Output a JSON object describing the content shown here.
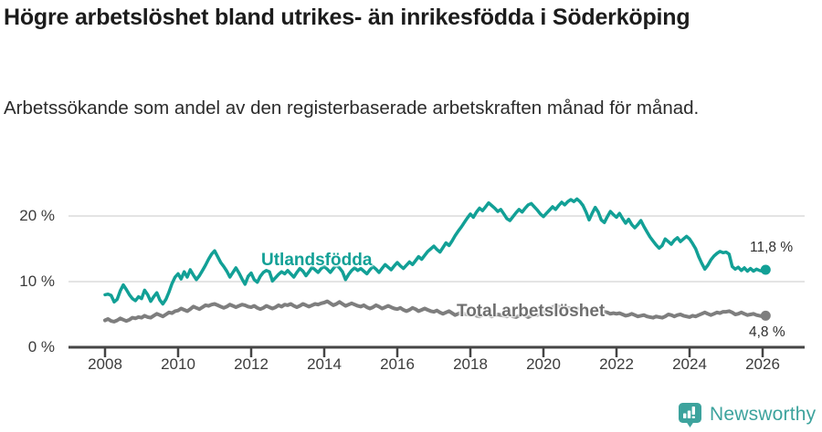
{
  "header": {
    "title": "Högre arbetslöshet bland utrikes- än inrikesfödda i Söderköping",
    "subtitle": "Arbetssökande som andel av den registerbaserade arbetskraften månad för månad."
  },
  "colors": {
    "accent_teal": "#12a096",
    "line_gray": "#7e7e7e",
    "gridline": "#dcdcdc",
    "axis": "#454545",
    "brand_teal": "#3da39d"
  },
  "chart_data": {
    "type": "line",
    "title": "Högre arbetslöshet bland utrikes- än inrikesfödda i Söderköping",
    "xlabel": "",
    "ylabel": "",
    "grid": "horizontal-only",
    "legend_position": "inline-labels",
    "x_start_year": 2008,
    "points_per_year": 12,
    "x_range": [
      2008.0,
      2026.17
    ],
    "ylim": [
      0,
      24
    ],
    "x_ticks": [
      2008,
      2010,
      2012,
      2014,
      2016,
      2018,
      2020,
      2022,
      2024,
      2026
    ],
    "y_ticks": [
      {
        "value": 0,
        "label": "0 %"
      },
      {
        "value": 10,
        "label": "10 %"
      },
      {
        "value": 20,
        "label": "20 %"
      }
    ],
    "series": [
      {
        "name": "Utlandsfödda",
        "color": "#12a096",
        "end_label": "11,8 %",
        "end_value": 11.8,
        "values": [
          8.0,
          8.1,
          7.9,
          6.9,
          7.3,
          8.6,
          9.5,
          8.8,
          8.0,
          7.4,
          7.1,
          7.7,
          7.4,
          8.7,
          8.0,
          7.0,
          7.7,
          8.3,
          7.2,
          6.6,
          7.3,
          8.4,
          9.7,
          10.7,
          11.2,
          10.4,
          11.5,
          10.7,
          11.8,
          11.0,
          10.3,
          10.9,
          11.7,
          12.5,
          13.4,
          14.2,
          14.7,
          13.8,
          12.9,
          12.3,
          11.6,
          10.7,
          11.4,
          12.1,
          11.3,
          10.4,
          9.6,
          10.8,
          11.3,
          10.3,
          9.9,
          10.8,
          11.4,
          11.7,
          11.5,
          10.1,
          10.6,
          11.1,
          11.5,
          11.2,
          11.7,
          11.2,
          10.7,
          11.4,
          12.0,
          11.6,
          10.9,
          11.5,
          12.2,
          11.8,
          11.4,
          12.0,
          12.3,
          11.9,
          11.4,
          12.0,
          12.5,
          12.1,
          11.5,
          10.3,
          11.1,
          11.7,
          12.1,
          11.7,
          12.0,
          11.6,
          11.2,
          11.8,
          12.3,
          11.9,
          11.4,
          12.0,
          12.6,
          12.2,
          11.8,
          12.4,
          12.9,
          12.4,
          12.0,
          12.5,
          13.0,
          12.6,
          13.2,
          13.8,
          13.4,
          14.0,
          14.6,
          15.0,
          15.4,
          14.9,
          14.5,
          15.2,
          15.9,
          15.5,
          16.2,
          17.0,
          17.7,
          18.3,
          19.0,
          19.7,
          20.3,
          19.8,
          20.6,
          21.2,
          20.8,
          21.4,
          22.0,
          21.6,
          21.2,
          20.7,
          21.0,
          20.3,
          19.6,
          19.3,
          19.9,
          20.5,
          21.0,
          20.6,
          21.2,
          21.7,
          21.9,
          21.4,
          20.9,
          20.3,
          19.9,
          20.4,
          20.9,
          21.4,
          21.0,
          21.6,
          22.1,
          21.7,
          22.2,
          22.5,
          22.2,
          22.6,
          22.2,
          21.6,
          20.6,
          19.4,
          20.4,
          21.3,
          20.6,
          19.4,
          19.0,
          19.9,
          20.7,
          20.2,
          19.8,
          20.4,
          19.6,
          18.9,
          19.5,
          18.7,
          18.2,
          18.7,
          19.3,
          18.4,
          17.6,
          16.8,
          16.2,
          15.6,
          15.1,
          15.5,
          16.5,
          16.1,
          15.7,
          16.3,
          16.7,
          16.1,
          16.5,
          16.9,
          16.5,
          15.8,
          15.0,
          13.8,
          12.8,
          11.9,
          12.5,
          13.3,
          13.9,
          14.3,
          14.6,
          14.4,
          14.5,
          14.2,
          12.3,
          11.9,
          12.2,
          11.7,
          12.1,
          11.6,
          12.0,
          11.6,
          11.9,
          11.7,
          11.6,
          11.8
        ]
      },
      {
        "name": "Total arbetslöshet",
        "color": "#7e7e7e",
        "end_label": "4,8 %",
        "end_value": 4.8,
        "values": [
          4.1,
          4.3,
          4.0,
          3.9,
          4.1,
          4.4,
          4.2,
          4.0,
          4.2,
          4.5,
          4.4,
          4.6,
          4.5,
          4.8,
          4.6,
          4.5,
          4.8,
          5.1,
          4.9,
          4.7,
          5.0,
          5.3,
          5.2,
          5.5,
          5.6,
          5.9,
          5.7,
          5.5,
          5.8,
          6.2,
          6.0,
          5.8,
          6.1,
          6.4,
          6.3,
          6.5,
          6.6,
          6.4,
          6.2,
          6.0,
          6.2,
          6.5,
          6.3,
          6.1,
          6.3,
          6.5,
          6.4,
          6.2,
          6.1,
          6.3,
          6.0,
          5.8,
          6.0,
          6.3,
          6.1,
          5.9,
          6.1,
          6.4,
          6.2,
          6.5,
          6.4,
          6.6,
          6.3,
          6.1,
          6.3,
          6.6,
          6.4,
          6.2,
          6.4,
          6.6,
          6.5,
          6.7,
          6.8,
          7.0,
          6.7,
          6.4,
          6.6,
          6.9,
          6.6,
          6.3,
          6.5,
          6.7,
          6.5,
          6.3,
          6.2,
          6.4,
          6.1,
          5.9,
          6.1,
          6.4,
          6.2,
          5.9,
          6.1,
          6.3,
          6.1,
          5.9,
          5.8,
          6.0,
          5.7,
          5.5,
          5.7,
          6.0,
          5.8,
          5.5,
          5.7,
          5.9,
          5.7,
          5.5,
          5.4,
          5.6,
          5.3,
          5.1,
          5.3,
          5.5,
          5.2,
          4.9,
          5.1,
          5.3,
          5.1,
          5.0,
          4.9,
          5.1,
          4.8,
          4.7,
          4.9,
          5.1,
          4.9,
          4.7,
          4.9,
          5.0,
          4.9,
          4.8,
          4.7,
          4.9,
          4.7,
          4.6,
          4.8,
          5.0,
          4.8,
          4.6,
          4.8,
          5.0,
          4.9,
          5.1,
          5.3,
          5.5,
          5.8,
          6.1,
          6.3,
          6.2,
          6.0,
          5.9,
          6.0,
          5.9,
          5.8,
          5.9,
          5.8,
          5.9,
          5.7,
          5.5,
          5.6,
          5.8,
          5.6,
          5.3,
          5.4,
          5.3,
          5.1,
          5.2,
          5.1,
          5.2,
          5.0,
          4.8,
          4.9,
          5.1,
          4.9,
          4.7,
          4.8,
          4.9,
          4.7,
          4.6,
          4.5,
          4.7,
          4.6,
          4.5,
          4.7,
          5.0,
          4.9,
          4.7,
          4.9,
          5.0,
          4.8,
          4.7,
          4.6,
          4.8,
          4.7,
          4.9,
          5.1,
          5.3,
          5.1,
          4.9,
          5.1,
          5.3,
          5.2,
          5.4,
          5.4,
          5.5,
          5.3,
          5.0,
          5.1,
          5.3,
          5.1,
          4.9,
          5.0,
          5.1,
          4.9,
          4.8,
          4.7,
          4.8
        ]
      }
    ]
  },
  "footer": {
    "brand": "Newsworthy"
  }
}
